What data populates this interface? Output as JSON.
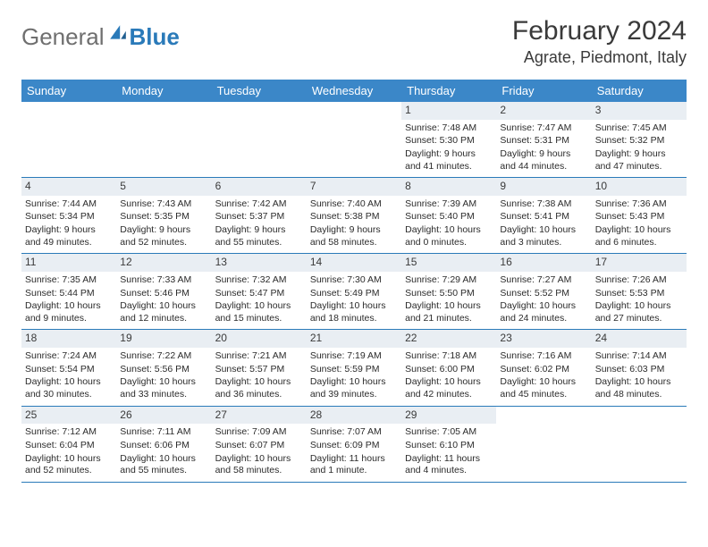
{
  "logo": {
    "gray": "General",
    "blue": "Blue"
  },
  "title": "February 2024",
  "location": "Agrate, Piedmont, Italy",
  "colors": {
    "header_bg": "#3b87c8",
    "header_text": "#ffffff",
    "rule": "#2a7ab9",
    "daynum_bg": "#e9eef3",
    "text": "#2b2b2b",
    "logo_gray": "#6f6f6f",
    "logo_blue": "#2a7ab9"
  },
  "weekdays": [
    "Sunday",
    "Monday",
    "Tuesday",
    "Wednesday",
    "Thursday",
    "Friday",
    "Saturday"
  ],
  "weeks": [
    [
      {
        "n": "",
        "empty": true
      },
      {
        "n": "",
        "empty": true
      },
      {
        "n": "",
        "empty": true
      },
      {
        "n": "",
        "empty": true
      },
      {
        "n": "1",
        "sunrise": "7:48 AM",
        "sunset": "5:30 PM",
        "daylight": "9 hours and 41 minutes."
      },
      {
        "n": "2",
        "sunrise": "7:47 AM",
        "sunset": "5:31 PM",
        "daylight": "9 hours and 44 minutes."
      },
      {
        "n": "3",
        "sunrise": "7:45 AM",
        "sunset": "5:32 PM",
        "daylight": "9 hours and 47 minutes."
      }
    ],
    [
      {
        "n": "4",
        "sunrise": "7:44 AM",
        "sunset": "5:34 PM",
        "daylight": "9 hours and 49 minutes."
      },
      {
        "n": "5",
        "sunrise": "7:43 AM",
        "sunset": "5:35 PM",
        "daylight": "9 hours and 52 minutes."
      },
      {
        "n": "6",
        "sunrise": "7:42 AM",
        "sunset": "5:37 PM",
        "daylight": "9 hours and 55 minutes."
      },
      {
        "n": "7",
        "sunrise": "7:40 AM",
        "sunset": "5:38 PM",
        "daylight": "9 hours and 58 minutes."
      },
      {
        "n": "8",
        "sunrise": "7:39 AM",
        "sunset": "5:40 PM",
        "daylight": "10 hours and 0 minutes."
      },
      {
        "n": "9",
        "sunrise": "7:38 AM",
        "sunset": "5:41 PM",
        "daylight": "10 hours and 3 minutes."
      },
      {
        "n": "10",
        "sunrise": "7:36 AM",
        "sunset": "5:43 PM",
        "daylight": "10 hours and 6 minutes."
      }
    ],
    [
      {
        "n": "11",
        "sunrise": "7:35 AM",
        "sunset": "5:44 PM",
        "daylight": "10 hours and 9 minutes."
      },
      {
        "n": "12",
        "sunrise": "7:33 AM",
        "sunset": "5:46 PM",
        "daylight": "10 hours and 12 minutes."
      },
      {
        "n": "13",
        "sunrise": "7:32 AM",
        "sunset": "5:47 PM",
        "daylight": "10 hours and 15 minutes."
      },
      {
        "n": "14",
        "sunrise": "7:30 AM",
        "sunset": "5:49 PM",
        "daylight": "10 hours and 18 minutes."
      },
      {
        "n": "15",
        "sunrise": "7:29 AM",
        "sunset": "5:50 PM",
        "daylight": "10 hours and 21 minutes."
      },
      {
        "n": "16",
        "sunrise": "7:27 AM",
        "sunset": "5:52 PM",
        "daylight": "10 hours and 24 minutes."
      },
      {
        "n": "17",
        "sunrise": "7:26 AM",
        "sunset": "5:53 PM",
        "daylight": "10 hours and 27 minutes."
      }
    ],
    [
      {
        "n": "18",
        "sunrise": "7:24 AM",
        "sunset": "5:54 PM",
        "daylight": "10 hours and 30 minutes."
      },
      {
        "n": "19",
        "sunrise": "7:22 AM",
        "sunset": "5:56 PM",
        "daylight": "10 hours and 33 minutes."
      },
      {
        "n": "20",
        "sunrise": "7:21 AM",
        "sunset": "5:57 PM",
        "daylight": "10 hours and 36 minutes."
      },
      {
        "n": "21",
        "sunrise": "7:19 AM",
        "sunset": "5:59 PM",
        "daylight": "10 hours and 39 minutes."
      },
      {
        "n": "22",
        "sunrise": "7:18 AM",
        "sunset": "6:00 PM",
        "daylight": "10 hours and 42 minutes."
      },
      {
        "n": "23",
        "sunrise": "7:16 AM",
        "sunset": "6:02 PM",
        "daylight": "10 hours and 45 minutes."
      },
      {
        "n": "24",
        "sunrise": "7:14 AM",
        "sunset": "6:03 PM",
        "daylight": "10 hours and 48 minutes."
      }
    ],
    [
      {
        "n": "25",
        "sunrise": "7:12 AM",
        "sunset": "6:04 PM",
        "daylight": "10 hours and 52 minutes."
      },
      {
        "n": "26",
        "sunrise": "7:11 AM",
        "sunset": "6:06 PM",
        "daylight": "10 hours and 55 minutes."
      },
      {
        "n": "27",
        "sunrise": "7:09 AM",
        "sunset": "6:07 PM",
        "daylight": "10 hours and 58 minutes."
      },
      {
        "n": "28",
        "sunrise": "7:07 AM",
        "sunset": "6:09 PM",
        "daylight": "11 hours and 1 minute."
      },
      {
        "n": "29",
        "sunrise": "7:05 AM",
        "sunset": "6:10 PM",
        "daylight": "11 hours and 4 minutes."
      },
      {
        "n": "",
        "empty": true
      },
      {
        "n": "",
        "empty": true
      }
    ]
  ]
}
